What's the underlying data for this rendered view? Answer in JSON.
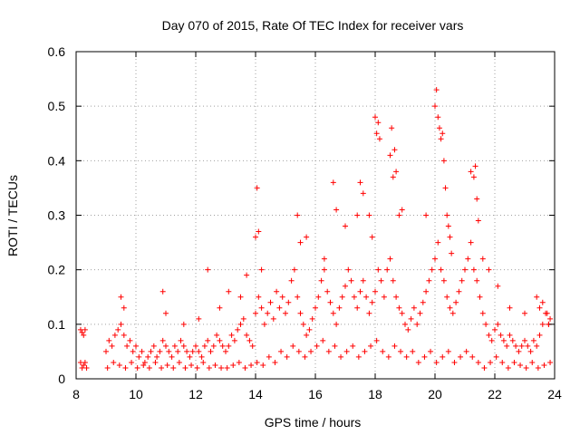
{
  "chart_data": {
    "type": "scatter",
    "title": "Day 070 of 2015, Rate Of TEC Index for receiver vars",
    "xlabel": "GPS time / hours",
    "ylabel": "ROTI / TECUs",
    "xlim": [
      8,
      24
    ],
    "ylim": [
      0,
      0.6
    ],
    "xticks": [
      8,
      10,
      12,
      14,
      16,
      18,
      20,
      22,
      24
    ],
    "xtick_labels": [
      "8",
      "10",
      "12",
      "14",
      "16",
      "18",
      "20",
      "22",
      "24"
    ],
    "yticks": [
      0,
      0.1,
      0.2,
      0.3,
      0.4,
      0.5,
      0.6
    ],
    "ytick_labels": [
      "0",
      "0.1",
      "0.2",
      "0.3",
      "0.4",
      "0.5",
      "0.6"
    ],
    "grid": true,
    "marker": "+",
    "color": "#ff0000",
    "series": [
      {
        "name": "vars",
        "x": [
          8.15,
          8.2,
          8.25,
          8.3,
          8.15,
          8.2,
          8.25,
          8.3,
          8.35,
          9.0,
          9.1,
          9.2,
          9.3,
          9.4,
          9.5,
          9.6,
          9.7,
          9.8,
          9.9,
          10.0,
          10.1,
          10.2,
          10.3,
          10.4,
          10.5,
          10.6,
          10.7,
          10.8,
          10.9,
          11.0,
          11.1,
          11.2,
          11.3,
          11.4,
          11.5,
          11.6,
          11.7,
          11.8,
          11.9,
          12.0,
          12.1,
          12.2,
          12.3,
          12.4,
          12.5,
          12.6,
          12.7,
          12.8,
          12.9,
          13.0,
          13.1,
          13.2,
          13.3,
          13.4,
          13.5,
          13.6,
          13.7,
          13.8,
          13.9,
          14.0,
          14.1,
          14.2,
          14.3,
          14.4,
          14.5,
          14.6,
          14.7,
          14.8,
          14.9,
          15.0,
          15.1,
          15.2,
          15.3,
          15.4,
          15.5,
          15.6,
          15.7,
          15.8,
          15.9,
          16.0,
          16.1,
          16.2,
          16.3,
          16.4,
          16.5,
          16.6,
          16.7,
          16.8,
          16.9,
          17.0,
          17.1,
          17.2,
          17.3,
          17.4,
          17.5,
          17.6,
          17.7,
          17.8,
          17.9,
          18.0,
          18.1,
          18.2,
          18.3,
          18.4,
          18.5,
          18.6,
          18.7,
          18.8,
          18.9,
          19.0,
          19.1,
          19.2,
          19.3,
          19.4,
          19.5,
          19.6,
          19.7,
          19.8,
          19.9,
          20.0,
          20.1,
          20.2,
          20.3,
          20.4,
          20.5,
          20.6,
          20.7,
          20.8,
          20.9,
          21.0,
          21.1,
          21.2,
          21.3,
          21.4,
          21.5,
          21.6,
          21.7,
          21.8,
          21.9,
          22.0,
          22.1,
          22.2,
          22.3,
          22.4,
          22.5,
          22.6,
          22.7,
          22.8,
          22.9,
          23.0,
          23.1,
          23.2,
          23.3,
          23.4,
          23.5,
          23.6,
          23.7,
          23.8,
          9.05,
          9.25,
          9.45,
          9.65,
          9.85,
          10.05,
          10.25,
          10.45,
          10.65,
          10.85,
          11.05,
          11.25,
          11.45,
          11.65,
          11.85,
          12.05,
          12.25,
          12.45,
          12.65,
          12.85,
          13.05,
          13.25,
          13.45,
          13.65,
          13.85,
          14.05,
          14.25,
          14.45,
          14.65,
          14.85,
          15.05,
          15.25,
          15.45,
          15.65,
          15.85,
          16.05,
          16.25,
          16.45,
          16.65,
          16.85,
          17.05,
          17.25,
          17.45,
          17.65,
          17.85,
          18.05,
          18.25,
          18.45,
          18.65,
          18.85,
          19.05,
          19.25,
          19.45,
          19.65,
          19.85,
          20.05,
          20.25,
          20.45,
          20.65,
          20.85,
          21.05,
          21.25,
          21.45,
          21.65,
          21.85,
          22.05,
          22.25,
          22.45,
          22.65,
          22.85,
          23.05,
          23.25,
          23.45,
          23.65,
          23.85,
          9.5,
          9.6,
          10.9,
          11.0,
          11.6,
          12.1,
          12.4,
          12.8,
          13.1,
          13.5,
          13.7,
          14.0,
          14.05,
          14.1,
          14.2,
          15.4,
          15.5,
          15.7,
          16.3,
          16.6,
          16.7,
          17.0,
          17.4,
          17.5,
          17.6,
          17.8,
          17.9,
          18.0,
          18.05,
          18.1,
          18.15,
          18.5,
          18.55,
          18.6,
          18.65,
          18.7,
          18.8,
          18.9,
          19.7,
          20.0,
          20.05,
          20.1,
          20.15,
          20.2,
          20.25,
          20.3,
          20.35,
          20.4,
          20.45,
          20.5,
          20.55,
          21.2,
          21.3,
          21.35,
          21.4,
          21.45,
          21.6,
          21.8,
          22.1,
          22.5,
          23.0,
          23.4,
          23.5,
          23.6,
          23.75,
          23.8,
          23.85
        ],
        "y": [
          0.09,
          0.085,
          0.08,
          0.09,
          0.03,
          0.02,
          0.025,
          0.03,
          0.02,
          0.05,
          0.07,
          0.06,
          0.08,
          0.09,
          0.1,
          0.08,
          0.06,
          0.07,
          0.05,
          0.06,
          0.04,
          0.05,
          0.03,
          0.04,
          0.05,
          0.06,
          0.04,
          0.05,
          0.07,
          0.06,
          0.05,
          0.04,
          0.06,
          0.05,
          0.07,
          0.06,
          0.05,
          0.04,
          0.05,
          0.06,
          0.05,
          0.04,
          0.06,
          0.07,
          0.05,
          0.06,
          0.08,
          0.07,
          0.06,
          0.05,
          0.06,
          0.08,
          0.07,
          0.09,
          0.1,
          0.11,
          0.08,
          0.07,
          0.06,
          0.12,
          0.15,
          0.13,
          0.1,
          0.12,
          0.14,
          0.11,
          0.16,
          0.13,
          0.15,
          0.12,
          0.14,
          0.18,
          0.2,
          0.15,
          0.12,
          0.1,
          0.08,
          0.09,
          0.11,
          0.13,
          0.15,
          0.18,
          0.2,
          0.16,
          0.14,
          0.12,
          0.1,
          0.13,
          0.15,
          0.17,
          0.2,
          0.18,
          0.15,
          0.13,
          0.16,
          0.18,
          0.15,
          0.12,
          0.14,
          0.16,
          0.2,
          0.18,
          0.15,
          0.2,
          0.22,
          0.18,
          0.15,
          0.13,
          0.12,
          0.1,
          0.09,
          0.11,
          0.13,
          0.1,
          0.12,
          0.14,
          0.16,
          0.18,
          0.2,
          0.22,
          0.25,
          0.2,
          0.18,
          0.15,
          0.13,
          0.12,
          0.14,
          0.16,
          0.18,
          0.2,
          0.22,
          0.25,
          0.2,
          0.18,
          0.15,
          0.12,
          0.1,
          0.08,
          0.07,
          0.09,
          0.1,
          0.08,
          0.07,
          0.06,
          0.08,
          0.07,
          0.06,
          0.05,
          0.06,
          0.07,
          0.06,
          0.05,
          0.07,
          0.06,
          0.08,
          0.1,
          0.12,
          0.1,
          0.02,
          0.03,
          0.025,
          0.02,
          0.03,
          0.02,
          0.025,
          0.02,
          0.03,
          0.02,
          0.025,
          0.02,
          0.03,
          0.02,
          0.025,
          0.02,
          0.03,
          0.02,
          0.025,
          0.02,
          0.02,
          0.025,
          0.03,
          0.02,
          0.025,
          0.03,
          0.025,
          0.04,
          0.03,
          0.05,
          0.04,
          0.06,
          0.05,
          0.04,
          0.05,
          0.06,
          0.07,
          0.05,
          0.06,
          0.04,
          0.05,
          0.06,
          0.04,
          0.05,
          0.06,
          0.07,
          0.05,
          0.04,
          0.06,
          0.05,
          0.04,
          0.05,
          0.03,
          0.04,
          0.05,
          0.03,
          0.04,
          0.05,
          0.03,
          0.04,
          0.05,
          0.04,
          0.03,
          0.02,
          0.03,
          0.04,
          0.03,
          0.02,
          0.03,
          0.025,
          0.02,
          0.03,
          0.02,
          0.025,
          0.03,
          0.15,
          0.13,
          0.16,
          0.12,
          0.1,
          0.11,
          0.2,
          0.13,
          0.16,
          0.15,
          0.19,
          0.26,
          0.35,
          0.27,
          0.2,
          0.3,
          0.25,
          0.26,
          0.22,
          0.36,
          0.31,
          0.28,
          0.3,
          0.36,
          0.34,
          0.3,
          0.26,
          0.48,
          0.45,
          0.47,
          0.44,
          0.41,
          0.46,
          0.37,
          0.42,
          0.38,
          0.3,
          0.31,
          0.3,
          0.5,
          0.53,
          0.48,
          0.46,
          0.44,
          0.45,
          0.4,
          0.35,
          0.3,
          0.28,
          0.26,
          0.23,
          0.38,
          0.37,
          0.39,
          0.33,
          0.29,
          0.22,
          0.2,
          0.17,
          0.13,
          0.12,
          0.15,
          0.13,
          0.14,
          0.12,
          0.1,
          0.11
        ]
      }
    ]
  }
}
